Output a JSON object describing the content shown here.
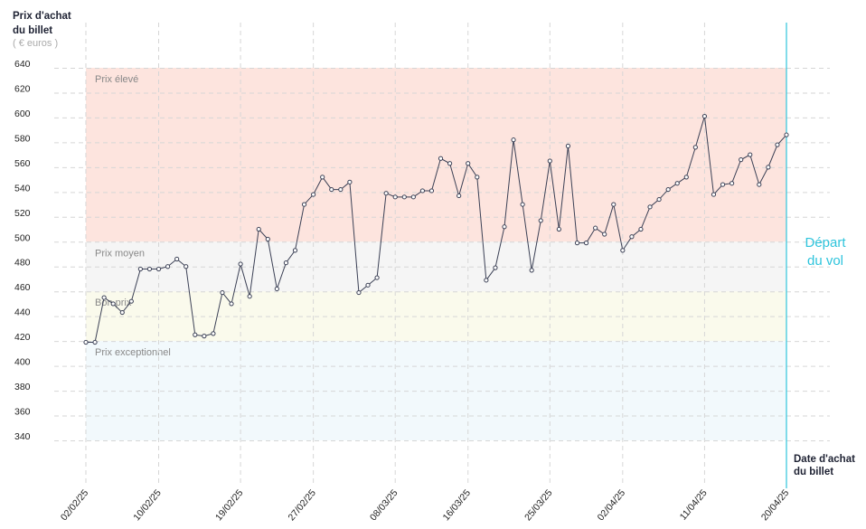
{
  "chart_data": {
    "type": "line",
    "y_label": [
      "Prix d'achat",
      "du billet"
    ],
    "y_unit": "( € euros )",
    "x_label": [
      "Date d'achat",
      "du billet"
    ],
    "departure_label": [
      "Départ",
      "du vol"
    ],
    "categories": [
      "02/02/25",
      null,
      null,
      null,
      null,
      null,
      null,
      null,
      "10/02/25",
      null,
      null,
      null,
      null,
      null,
      null,
      null,
      null,
      "19/02/25",
      null,
      null,
      null,
      null,
      null,
      null,
      null,
      "27/02/25",
      null,
      null,
      null,
      null,
      null,
      null,
      null,
      null,
      "08/03/25",
      null,
      null,
      null,
      null,
      null,
      null,
      null,
      "16/03/25",
      null,
      null,
      null,
      null,
      null,
      null,
      null,
      null,
      "25/03/25",
      null,
      null,
      null,
      null,
      null,
      null,
      null,
      "02/04/25",
      null,
      null,
      null,
      null,
      null,
      null,
      null,
      null,
      "11/04/25",
      null,
      null,
      null,
      null,
      null,
      null,
      null,
      null,
      "20/04/25"
    ],
    "values": [
      419,
      419,
      455,
      450,
      443,
      452,
      478,
      478,
      478,
      480,
      486,
      480,
      425,
      424,
      426,
      459,
      450,
      482,
      456,
      510,
      502,
      462,
      483,
      493,
      530,
      538,
      552,
      542,
      542,
      548,
      459,
      465,
      471,
      539,
      536,
      536,
      536,
      541,
      541,
      567,
      563,
      537,
      563,
      552,
      469,
      479,
      512,
      582,
      530,
      477,
      517,
      565,
      510,
      577,
      499,
      499,
      511,
      506,
      530,
      493,
      504,
      510,
      528,
      534,
      542,
      547,
      552,
      576,
      601,
      538,
      546,
      547,
      566,
      570,
      546,
      560,
      578,
      586
    ],
    "color": "#3b4055",
    "departure_color": "#2ec4dc",
    "ylim": [
      340,
      640
    ],
    "yticks": [
      340,
      360,
      380,
      400,
      420,
      440,
      460,
      480,
      500,
      520,
      540,
      560,
      580,
      600,
      620,
      640
    ],
    "grid": true,
    "bands": [
      {
        "label": "Prix élevé",
        "from": 500,
        "to": 640,
        "color": "#fde4de"
      },
      {
        "label": "Prix moyen",
        "from": 460,
        "to": 500,
        "color": "#f5f5f5"
      },
      {
        "label": "Bon prix",
        "from": 420,
        "to": 460,
        "color": "#fafaec"
      },
      {
        "label": "Prix exceptionnel",
        "from": 340,
        "to": 420,
        "color": "#f2f9fc"
      }
    ]
  }
}
